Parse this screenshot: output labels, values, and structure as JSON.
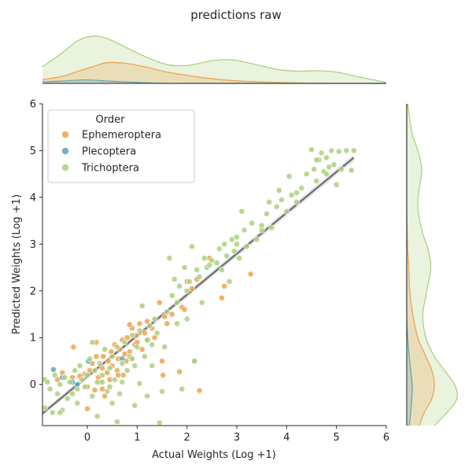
{
  "chart_data": {
    "type": "scatter",
    "title": "predictions raw",
    "xlabel": "Actual Weights (Log +1)",
    "ylabel": "Predicted Weights (Log +1)",
    "xlim": [
      -0.9,
      6
    ],
    "ylim": [
      -0.88,
      6
    ],
    "xticks": [
      "0",
      "1",
      "2",
      "3",
      "4",
      "5",
      "6"
    ],
    "yticks": [
      "0",
      "1",
      "2",
      "3",
      "4",
      "5",
      "6"
    ],
    "grid": false,
    "legend": {
      "title": "Order",
      "location": "upper-left",
      "entries": [
        "Ephemeroptera",
        "Plecoptera",
        "Trichoptera"
      ]
    },
    "series": [
      {
        "name": "Ephemeroptera",
        "color": "#f0a04b",
        "points": [
          [
            -0.28,
            0.8
          ],
          [
            -0.5,
            0.25
          ],
          [
            -0.3,
            0.15
          ],
          [
            -0.12,
            0.1
          ],
          [
            -0.05,
            0.22
          ],
          [
            0.0,
            -0.05
          ],
          [
            0.05,
            0.3
          ],
          [
            0.1,
            0.45
          ],
          [
            0.15,
            -0.12
          ],
          [
            0.18,
            0.9
          ],
          [
            0.22,
            0.15
          ],
          [
            0.25,
            0.05
          ],
          [
            0.3,
            0.35
          ],
          [
            0.32,
            0.6
          ],
          [
            0.35,
            -0.25
          ],
          [
            0.4,
            0.25
          ],
          [
            0.42,
            0.5
          ],
          [
            0.45,
            0.1
          ],
          [
            0.48,
            0.7
          ],
          [
            0.5,
            0.4
          ],
          [
            0.55,
            0.85
          ],
          [
            0.6,
            0.3
          ],
          [
            0.62,
            0.55
          ],
          [
            0.65,
            0.75
          ],
          [
            0.7,
            0.95
          ],
          [
            0.72,
            0.2
          ],
          [
            0.75,
            0.65
          ],
          [
            0.78,
            0.5
          ],
          [
            0.8,
            1.0
          ],
          [
            0.85,
            0.7
          ],
          [
            0.88,
            0.55
          ],
          [
            0.9,
            1.2
          ],
          [
            0.95,
            0.85
          ],
          [
            0.98,
            1.05
          ],
          [
            1.0,
            0.9
          ],
          [
            1.05,
            1.3
          ],
          [
            1.1,
            0.75
          ],
          [
            1.15,
            1.1
          ],
          [
            1.2,
            1.35
          ],
          [
            1.22,
            0.95
          ],
          [
            1.3,
            1.2
          ],
          [
            1.35,
            1.0
          ],
          [
            1.45,
            1.75
          ],
          [
            1.5,
            0.5
          ],
          [
            1.55,
            1.45
          ],
          [
            1.6,
            1.3
          ],
          [
            1.7,
            1.5
          ],
          [
            1.85,
            0.27
          ],
          [
            1.9,
            1.65
          ],
          [
            1.95,
            1.6
          ],
          [
            2.0,
            2.2
          ],
          [
            2.1,
            2.05
          ],
          [
            2.2,
            2.25
          ],
          [
            2.25,
            -0.13
          ],
          [
            2.45,
            2.7
          ],
          [
            2.7,
            1.85
          ],
          [
            2.75,
            2.1
          ],
          [
            3.28,
            2.36
          ],
          [
            0.0,
            -0.52
          ],
          [
            -0.6,
            0.1
          ],
          [
            0.3,
            -0.1
          ],
          [
            0.62,
            0.2
          ],
          [
            0.85,
            1.28
          ],
          [
            1.52,
            0.2
          ],
          [
            0.18,
            0.6
          ],
          [
            -0.15,
            0.18
          ]
        ]
      },
      {
        "name": "Plecoptera",
        "color": "#5ba3bd",
        "points": [
          [
            -0.68,
            0.32
          ],
          [
            -0.5,
            0.15
          ],
          [
            -0.3,
            0.05
          ],
          [
            0.02,
            0.5
          ],
          [
            0.7,
            0.55
          ],
          [
            -0.2,
            0.0
          ]
        ]
      },
      {
        "name": "Trichoptera",
        "color": "#a8cf7a",
        "points": [
          [
            -0.85,
            0.1
          ],
          [
            -0.85,
            -0.5
          ],
          [
            -0.8,
            0.05
          ],
          [
            -0.75,
            -0.1
          ],
          [
            -0.7,
            -0.6
          ],
          [
            -0.65,
            0.2
          ],
          [
            -0.6,
            -0.2
          ],
          [
            -0.55,
            0.0
          ],
          [
            -0.5,
            -0.55
          ],
          [
            -0.45,
            0.15
          ],
          [
            -0.4,
            -0.3
          ],
          [
            -0.35,
            0.05
          ],
          [
            -0.3,
            -0.2
          ],
          [
            -0.25,
            0.3
          ],
          [
            -0.2,
            -0.1
          ],
          [
            -0.15,
            0.4
          ],
          [
            -0.1,
            0.1
          ],
          [
            -0.05,
            -0.05
          ],
          [
            0.0,
            0.2
          ],
          [
            0.05,
            0.55
          ],
          [
            0.1,
            -0.25
          ],
          [
            0.15,
            0.3
          ],
          [
            0.2,
            0.05
          ],
          [
            0.25,
            0.45
          ],
          [
            0.3,
            0.2
          ],
          [
            0.35,
            0.75
          ],
          [
            0.4,
            -0.15
          ],
          [
            0.45,
            0.35
          ],
          [
            0.5,
            0.6
          ],
          [
            0.55,
            0.1
          ],
          [
            0.6,
            0.8
          ],
          [
            0.65,
            -0.2
          ],
          [
            0.7,
            0.45
          ],
          [
            0.75,
            0.9
          ],
          [
            0.8,
            0.3
          ],
          [
            0.85,
            0.6
          ],
          [
            0.9,
            1.05
          ],
          [
            0.95,
            0.4
          ],
          [
            1.0,
            0.8
          ],
          [
            1.05,
            1.15
          ],
          [
            1.1,
            1.68
          ],
          [
            1.15,
            0.6
          ],
          [
            1.2,
            0.95
          ],
          [
            1.25,
            1.25
          ],
          [
            1.3,
            0.85
          ],
          [
            1.35,
            1.4
          ],
          [
            1.4,
            1.1
          ],
          [
            1.5,
            -0.15
          ],
          [
            1.55,
            0.8
          ],
          [
            1.6,
            1.55
          ],
          [
            1.65,
            2.7
          ],
          [
            1.7,
            1.9
          ],
          [
            1.75,
            2.25
          ],
          [
            1.8,
            1.75
          ],
          [
            1.85,
            2.1
          ],
          [
            1.9,
            -0.1
          ],
          [
            1.95,
            2.5
          ],
          [
            2.0,
            1.4
          ],
          [
            2.05,
            2.2
          ],
          [
            2.1,
            2.95
          ],
          [
            2.15,
            0.5
          ],
          [
            2.2,
            2.45
          ],
          [
            2.25,
            2.3
          ],
          [
            2.3,
            1.75
          ],
          [
            2.35,
            2.7
          ],
          [
            2.4,
            2.5
          ],
          [
            2.5,
            2.65
          ],
          [
            2.6,
            2.6
          ],
          [
            2.65,
            2.9
          ],
          [
            2.7,
            2.45
          ],
          [
            2.75,
            3.0
          ],
          [
            2.8,
            2.75
          ],
          [
            2.85,
            2.2
          ],
          [
            2.9,
            3.1
          ],
          [
            2.95,
            2.85
          ],
          [
            3.0,
            3.15
          ],
          [
            3.05,
            2.7
          ],
          [
            3.1,
            3.7
          ],
          [
            3.15,
            3.3
          ],
          [
            3.2,
            2.95
          ],
          [
            3.3,
            3.45
          ],
          [
            3.4,
            3.1
          ],
          [
            3.5,
            3.4
          ],
          [
            3.6,
            3.65
          ],
          [
            3.65,
            3.9
          ],
          [
            3.7,
            3.35
          ],
          [
            3.8,
            3.8
          ],
          [
            3.85,
            4.15
          ],
          [
            3.9,
            3.95
          ],
          [
            4.0,
            3.7
          ],
          [
            4.05,
            4.45
          ],
          [
            4.1,
            4.05
          ],
          [
            4.2,
            3.9
          ],
          [
            4.3,
            4.2
          ],
          [
            4.4,
            4.5
          ],
          [
            4.5,
            5.02
          ],
          [
            4.55,
            4.6
          ],
          [
            4.6,
            4.35
          ],
          [
            4.65,
            4.8
          ],
          [
            4.7,
            4.95
          ],
          [
            4.75,
            4.55
          ],
          [
            4.8,
            4.85
          ],
          [
            4.85,
            4.65
          ],
          [
            4.9,
            5.0
          ],
          [
            4.95,
            4.7
          ],
          [
            5.0,
            4.27
          ],
          [
            5.05,
            4.98
          ],
          [
            5.1,
            4.6
          ],
          [
            5.2,
            5.0
          ],
          [
            5.3,
            4.58
          ],
          [
            5.35,
            5.0
          ],
          [
            0.6,
            -0.8
          ],
          [
            1.45,
            -0.82
          ],
          [
            0.2,
            -0.68
          ],
          [
            -0.55,
            -0.6
          ],
          [
            1.05,
            0.02
          ],
          [
            1.2,
            -0.25
          ],
          [
            2.15,
            0.5
          ],
          [
            0.95,
            -0.45
          ],
          [
            -0.2,
            -0.4
          ],
          [
            0.5,
            -0.4
          ],
          [
            1.3,
            0.4
          ],
          [
            1.8,
            1.3
          ],
          [
            2.0,
            2.0
          ],
          [
            2.45,
            2.55
          ],
          [
            3.0,
            3.0
          ],
          [
            3.5,
            3.3
          ],
          [
            4.2,
            4.1
          ],
          [
            4.6,
            4.8
          ],
          [
            4.8,
            4.5
          ],
          [
            0.1,
            0.9
          ],
          [
            0.3,
            0.05
          ],
          [
            0.45,
            -0.05
          ],
          [
            0.7,
            0.05
          ],
          [
            0.9,
            0.55
          ]
        ]
      }
    ],
    "regression": {
      "x": [
        -0.9,
        5.35
      ],
      "y": [
        -0.62,
        4.85
      ],
      "color": "#777777"
    },
    "marginal_x": {
      "x": [
        -0.9,
        -0.5,
        -0.2,
        0.1,
        0.4,
        0.8,
        1.2,
        1.6,
        2.0,
        2.5,
        2.9,
        3.3,
        3.8,
        4.2,
        4.6,
        5.0,
        5.4,
        6.0
      ],
      "Trichoptera": [
        0.35,
        0.65,
        0.9,
        1.0,
        0.95,
        0.75,
        0.55,
        0.4,
        0.38,
        0.48,
        0.5,
        0.42,
        0.3,
        0.26,
        0.27,
        0.24,
        0.15,
        0.02
      ],
      "Ephemeroptera": [
        0.08,
        0.15,
        0.25,
        0.35,
        0.44,
        0.42,
        0.34,
        0.24,
        0.17,
        0.1,
        0.06,
        0.04,
        0.02,
        0.01,
        0.0,
        0.0,
        0.0,
        0.0
      ],
      "Plecoptera": [
        0.03,
        0.05,
        0.07,
        0.07,
        0.05,
        0.03,
        0.01,
        0.0,
        0.0,
        0.0,
        0.0,
        0.0,
        0.0,
        0.0,
        0.0,
        0.0,
        0.0,
        0.0
      ]
    },
    "marginal_y": {
      "y": [
        -0.88,
        -0.6,
        -0.3,
        0.0,
        0.3,
        0.6,
        1.0,
        1.5,
        2.0,
        2.5,
        2.9,
        3.3,
        3.8,
        4.2,
        4.6,
        5.0,
        5.4,
        6.0
      ],
      "Trichoptera": [
        0.55,
        0.8,
        1.0,
        0.95,
        0.75,
        0.55,
        0.38,
        0.32,
        0.4,
        0.48,
        0.42,
        0.3,
        0.22,
        0.25,
        0.3,
        0.22,
        0.1,
        0.02
      ],
      "Ephemeroptera": [
        0.25,
        0.35,
        0.5,
        0.55,
        0.5,
        0.38,
        0.22,
        0.12,
        0.06,
        0.04,
        0.02,
        0.01,
        0.0,
        0.0,
        0.0,
        0.0,
        0.0,
        0.0
      ],
      "Plecoptera": [
        0.05,
        0.08,
        0.1,
        0.11,
        0.08,
        0.05,
        0.02,
        0.0,
        0.0,
        0.0,
        0.0,
        0.0,
        0.0,
        0.0,
        0.0,
        0.0,
        0.0,
        0.0
      ]
    }
  }
}
